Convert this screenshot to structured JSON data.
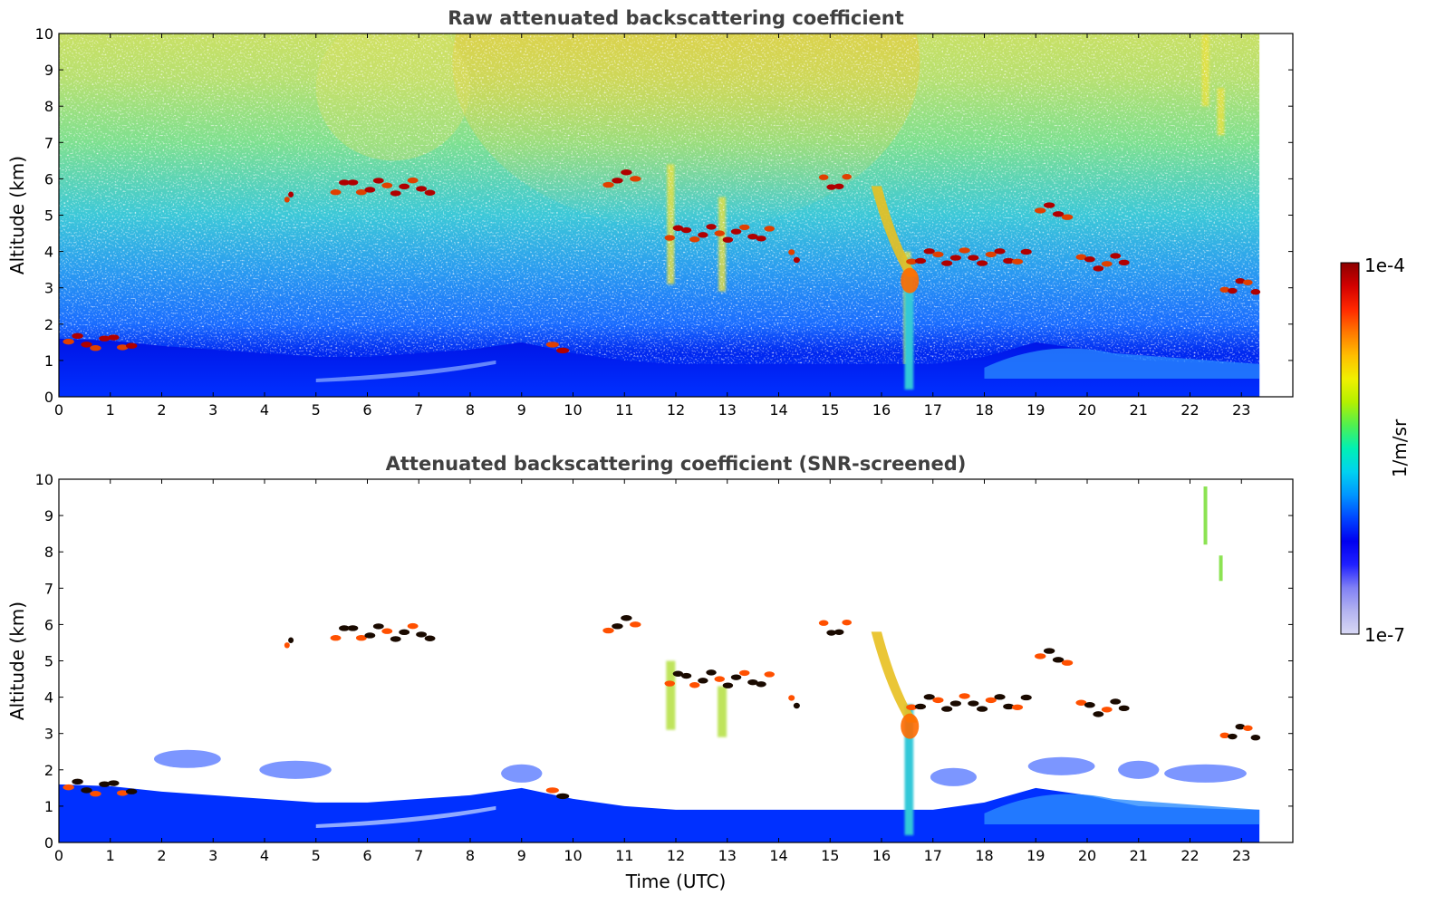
{
  "chart_data": [
    {
      "type": "heatmap",
      "title": "Raw attenuated backscattering coefficient",
      "xlabel": "",
      "ylabel": "Altitude (km)",
      "xlim": [
        0,
        24
      ],
      "ylim": [
        0,
        10
      ],
      "data_x_max": 23.35,
      "xticks": [
        "0",
        "1",
        "2",
        "3",
        "4",
        "5",
        "6",
        "7",
        "8",
        "9",
        "10",
        "11",
        "12",
        "13",
        "14",
        "15",
        "16",
        "17",
        "18",
        "19",
        "20",
        "21",
        "22",
        "23"
      ],
      "yticks": [
        "0",
        "1",
        "2",
        "3",
        "4",
        "5",
        "6",
        "7",
        "8",
        "9",
        "10"
      ],
      "scale": "log",
      "noise_background": true,
      "features": {
        "boundary_layer": [
          [
            0,
            1.6
          ],
          [
            1,
            1.55
          ],
          [
            2,
            1.4
          ],
          [
            3,
            1.3
          ],
          [
            4,
            1.2
          ],
          [
            5,
            1.1
          ],
          [
            6,
            1.1
          ],
          [
            7,
            1.2
          ],
          [
            8,
            1.3
          ],
          [
            9,
            1.5
          ],
          [
            10,
            1.2
          ],
          [
            11,
            1.0
          ],
          [
            12,
            0.9
          ],
          [
            13,
            0.9
          ],
          [
            14,
            0.9
          ],
          [
            15,
            0.9
          ],
          [
            16,
            0.9
          ],
          [
            17,
            0.9
          ],
          [
            18,
            1.1
          ],
          [
            19,
            1.5
          ],
          [
            20,
            1.3
          ],
          [
            21,
            1.0
          ],
          [
            22,
            0.95
          ],
          [
            23,
            0.9
          ],
          [
            23.35,
            0.9
          ]
        ],
        "cloud_layers": [
          {
            "x0": 5.3,
            "x1": 7.3,
            "y": 5.78
          },
          {
            "x0": 4.4,
            "x1": 4.55,
            "y": 5.6
          },
          {
            "x0": 10.6,
            "x1": 11.3,
            "y": 6.0
          },
          {
            "x0": 11.8,
            "x1": 13.9,
            "y": 4.5
          },
          {
            "x0": 14.2,
            "x1": 14.4,
            "y": 3.8
          },
          {
            "x0": 14.8,
            "x1": 15.4,
            "y": 5.9
          },
          {
            "x0": 16.5,
            "x1": 18.9,
            "y": 3.85
          },
          {
            "x0": 19.0,
            "x1": 19.7,
            "y": 5.1
          },
          {
            "x0": 19.8,
            "x1": 20.8,
            "y": 3.7
          },
          {
            "x0": 22.6,
            "x1": 23.35,
            "y": 3.05
          },
          {
            "x0": 0.1,
            "x1": 1.5,
            "y": 1.5
          },
          {
            "x0": 9.5,
            "x1": 9.9,
            "y": 1.45
          }
        ]
      }
    },
    {
      "type": "heatmap",
      "title": "Attenuated backscattering coefficient (SNR-screened)",
      "xlabel": "Time (UTC)",
      "ylabel": "Altitude (km)",
      "xlim": [
        0,
        24
      ],
      "ylim": [
        0,
        10
      ],
      "data_x_max": 23.35,
      "xticks": [
        "0",
        "1",
        "2",
        "3",
        "4",
        "5",
        "6",
        "7",
        "8",
        "9",
        "10",
        "11",
        "12",
        "13",
        "14",
        "15",
        "16",
        "17",
        "18",
        "19",
        "20",
        "21",
        "22",
        "23"
      ],
      "yticks": [
        "0",
        "1",
        "2",
        "3",
        "4",
        "5",
        "6",
        "7",
        "8",
        "9",
        "10"
      ],
      "scale": "log",
      "noise_background": false
    }
  ],
  "colorbar": {
    "label": "1/m/sr",
    "max_label": "1e-4",
    "min_label": "1e-7",
    "colormap": [
      "#d8d8f4",
      "#b3b3f0",
      "#8080f5",
      "#2020ff",
      "#0000f0",
      "#0046ff",
      "#0096ff",
      "#00d2f0",
      "#00f0b4",
      "#50f050",
      "#b4f000",
      "#f0f000",
      "#ffbe00",
      "#ff7800",
      "#ff2800",
      "#d20000",
      "#8c0000"
    ]
  }
}
